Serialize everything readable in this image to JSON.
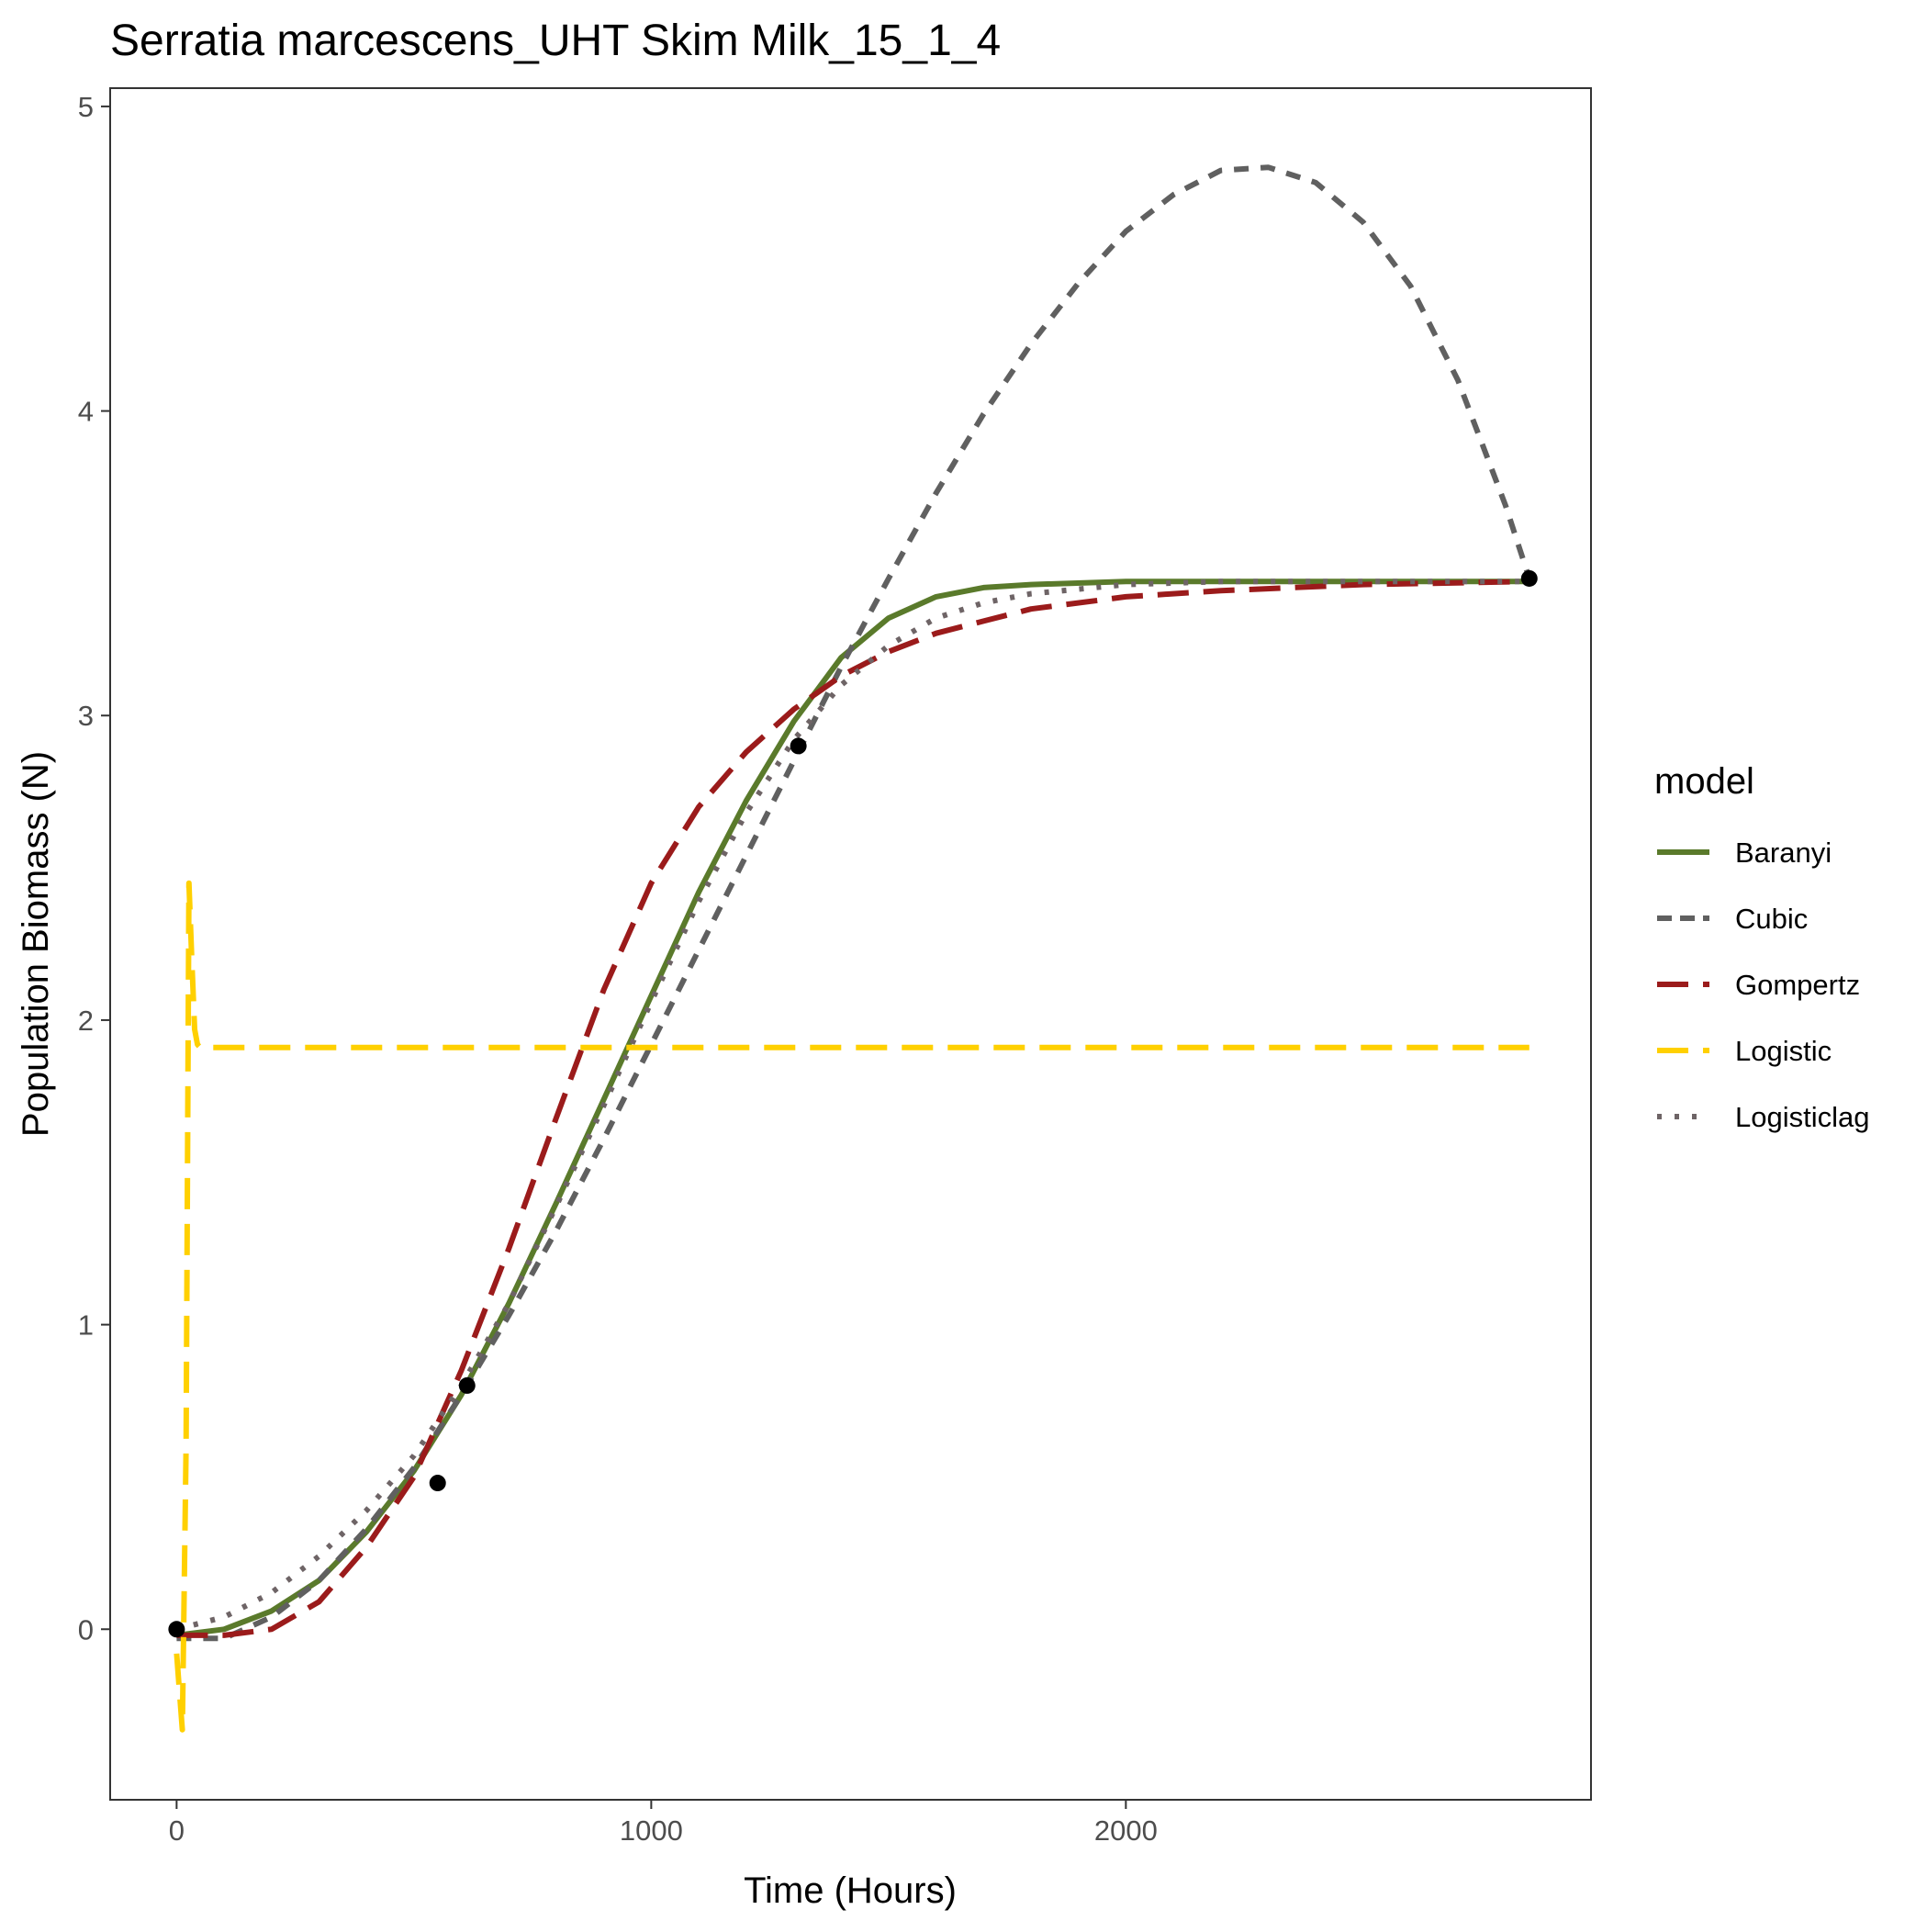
{
  "chart_data": {
    "type": "line",
    "title": "Serratia marcescens_UHT Skim Milk_15_1_4",
    "xlabel": "Time (Hours)",
    "ylabel": "Population Biomass (N)",
    "xlim": [
      -140,
      2980
    ],
    "ylim": [
      -0.56,
      5.06
    ],
    "xticks": [
      0,
      1000,
      2000
    ],
    "yticks": [
      0,
      1,
      2,
      3,
      4,
      5
    ],
    "grid": false,
    "legend": {
      "title": "model",
      "position": "right"
    },
    "points": {
      "x": [
        0,
        550,
        612,
        1310,
        2850
      ],
      "y": [
        0.0,
        0.48,
        0.8,
        2.9,
        3.45
      ],
      "color": "#000000"
    },
    "series": [
      {
        "name": "Baranyi",
        "color": "#5a7a2b",
        "dash": "solid",
        "x": [
          0,
          100,
          200,
          300,
          400,
          500,
          600,
          700,
          800,
          900,
          1000,
          1100,
          1200,
          1300,
          1400,
          1500,
          1600,
          1700,
          1800,
          2000,
          2200,
          2500,
          2850
        ],
        "y": [
          -0.02,
          0.0,
          0.06,
          0.16,
          0.32,
          0.52,
          0.77,
          1.07,
          1.4,
          1.74,
          2.08,
          2.42,
          2.72,
          2.98,
          3.19,
          3.32,
          3.39,
          3.42,
          3.43,
          3.44,
          3.44,
          3.44,
          3.44
        ]
      },
      {
        "name": "Cubic",
        "color": "#606060",
        "dash": "dashed",
        "x": [
          0,
          100,
          200,
          300,
          400,
          500,
          600,
          700,
          800,
          900,
          1000,
          1100,
          1200,
          1300,
          1400,
          1500,
          1600,
          1700,
          1800,
          1900,
          2000,
          2100,
          2200,
          2300,
          2400,
          2500,
          2600,
          2700,
          2800,
          2850
        ],
        "y": [
          -0.03,
          -0.03,
          0.04,
          0.16,
          0.33,
          0.53,
          0.77,
          1.03,
          1.31,
          1.61,
          1.92,
          2.23,
          2.54,
          2.85,
          3.16,
          3.45,
          3.73,
          3.99,
          4.22,
          4.42,
          4.59,
          4.71,
          4.79,
          4.8,
          4.75,
          4.62,
          4.41,
          4.1,
          3.69,
          3.45
        ]
      },
      {
        "name": "Gompertz",
        "color": "#9b1b1b",
        "dash": "longdash",
        "x": [
          0,
          100,
          200,
          300,
          400,
          500,
          600,
          700,
          800,
          900,
          1000,
          1100,
          1200,
          1300,
          1400,
          1500,
          1600,
          1700,
          1800,
          2000,
          2200,
          2500,
          2850
        ],
        "y": [
          -0.02,
          -0.02,
          0.0,
          0.09,
          0.27,
          0.5,
          0.85,
          1.25,
          1.68,
          2.1,
          2.45,
          2.7,
          2.88,
          3.02,
          3.13,
          3.21,
          3.27,
          3.31,
          3.35,
          3.39,
          3.41,
          3.43,
          3.44
        ]
      },
      {
        "name": "Logistic",
        "color": "#ffd000",
        "dash": "longdash",
        "x": [
          0,
          12,
          20,
          26,
          32,
          38,
          44,
          50,
          60,
          100,
          500,
          1000,
          2000,
          2850
        ],
        "y": [
          -0.08,
          -0.33,
          0.6,
          2.45,
          2.2,
          1.97,
          1.92,
          1.91,
          1.91,
          1.91,
          1.91,
          1.91,
          1.91,
          1.91
        ]
      },
      {
        "name": "Logisticlag",
        "color": "#6e6466",
        "dash": "dotted",
        "x": [
          0,
          100,
          200,
          300,
          400,
          500,
          600,
          700,
          800,
          900,
          1000,
          1100,
          1200,
          1300,
          1400,
          1500,
          1600,
          1700,
          1800,
          2000,
          2200,
          2500,
          2850
        ],
        "y": [
          0.0,
          0.04,
          0.12,
          0.24,
          0.39,
          0.57,
          0.8,
          1.07,
          1.39,
          1.72,
          2.06,
          2.39,
          2.68,
          2.92,
          3.1,
          3.23,
          3.32,
          3.37,
          3.4,
          3.43,
          3.44,
          3.44,
          3.44
        ]
      }
    ]
  }
}
